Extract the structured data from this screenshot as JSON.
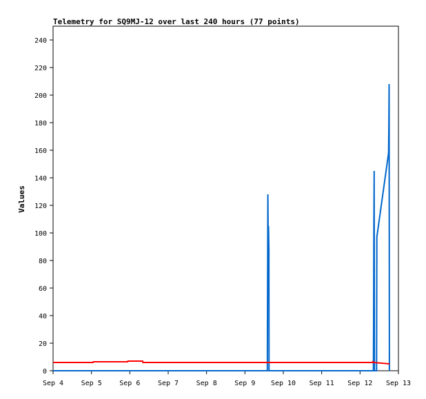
{
  "chart_data": {
    "type": "line",
    "title": "Telemetry for SQ9MJ-12 over last 240 hours (77 points)",
    "ylabel": "Values",
    "xlabel": "",
    "ylim": [
      0,
      250
    ],
    "yticks": [
      0,
      20,
      40,
      60,
      80,
      100,
      120,
      140,
      160,
      180,
      200,
      220,
      240
    ],
    "x_domain": [
      "Sep 4 00:00",
      "Sep 13 00:00"
    ],
    "xticks": [
      {
        "at": "Sep 4 00:00",
        "label": "Sep 4"
      },
      {
        "at": "Sep 5 00:00",
        "label": "Sep 5"
      },
      {
        "at": "Sep 6 00:00",
        "label": "Sep 6"
      },
      {
        "at": "Sep 7 00:00",
        "label": "Sep 7"
      },
      {
        "at": "Sep 8 00:00",
        "label": "Sep 8"
      },
      {
        "at": "Sep 9 00:00",
        "label": "Sep 9"
      },
      {
        "at": "Sep 10 00:00",
        "label": "Sep 10"
      },
      {
        "at": "Sep 11 00:00",
        "label": "Sep 11"
      },
      {
        "at": "Sep 12 00:00",
        "label": "Sep 12"
      },
      {
        "at": "Sep 13 00:00",
        "label": "Sep 13"
      }
    ],
    "grid": false,
    "legend": "none",
    "series": [
      {
        "color": "#0066cc",
        "points": [
          {
            "x": "Sep 4 00:00",
            "y": 0
          },
          {
            "x": "Sep 9 14:00",
            "y": 0
          },
          {
            "x": "Sep 9 14:20",
            "y": 128
          },
          {
            "x": "Sep 9 14:35",
            "y": 88
          },
          {
            "x": "Sep 9 14:45",
            "y": 105
          },
          {
            "x": "Sep 9 15:00",
            "y": 88
          },
          {
            "x": "Sep 9 15:05",
            "y": 0
          },
          {
            "x": "Sep 12 08:20",
            "y": 0
          },
          {
            "x": "Sep 12 08:30",
            "y": 37
          },
          {
            "x": "Sep 12 08:40",
            "y": 108
          },
          {
            "x": "Sep 12 08:50",
            "y": 145
          },
          {
            "x": "Sep 12 09:00",
            "y": 0
          },
          {
            "x": "Sep 12 10:20",
            "y": 0
          },
          {
            "x": "Sep 12 10:30",
            "y": 97
          },
          {
            "x": "Sep 12 17:50",
            "y": 158
          },
          {
            "x": "Sep 12 18:00",
            "y": 177
          },
          {
            "x": "Sep 12 18:10",
            "y": 208
          },
          {
            "x": "Sep 12 18:20",
            "y": 0
          }
        ]
      },
      {
        "color": "#ff0000",
        "points": [
          {
            "x": "Sep 4 00:00",
            "y": 6
          },
          {
            "x": "Sep 5 01:00",
            "y": 6
          },
          {
            "x": "Sep 5 01:10",
            "y": 6.5
          },
          {
            "x": "Sep 5 22:40",
            "y": 6.5
          },
          {
            "x": "Sep 5 22:50",
            "y": 7
          },
          {
            "x": "Sep 6 08:00",
            "y": 7
          },
          {
            "x": "Sep 6 08:10",
            "y": 6
          },
          {
            "x": "Sep 12 08:00",
            "y": 6
          },
          {
            "x": "Sep 12 08:10",
            "y": 7
          },
          {
            "x": "Sep 12 08:20",
            "y": 6
          },
          {
            "x": "Sep 12 18:30",
            "y": 5
          }
        ]
      }
    ]
  }
}
